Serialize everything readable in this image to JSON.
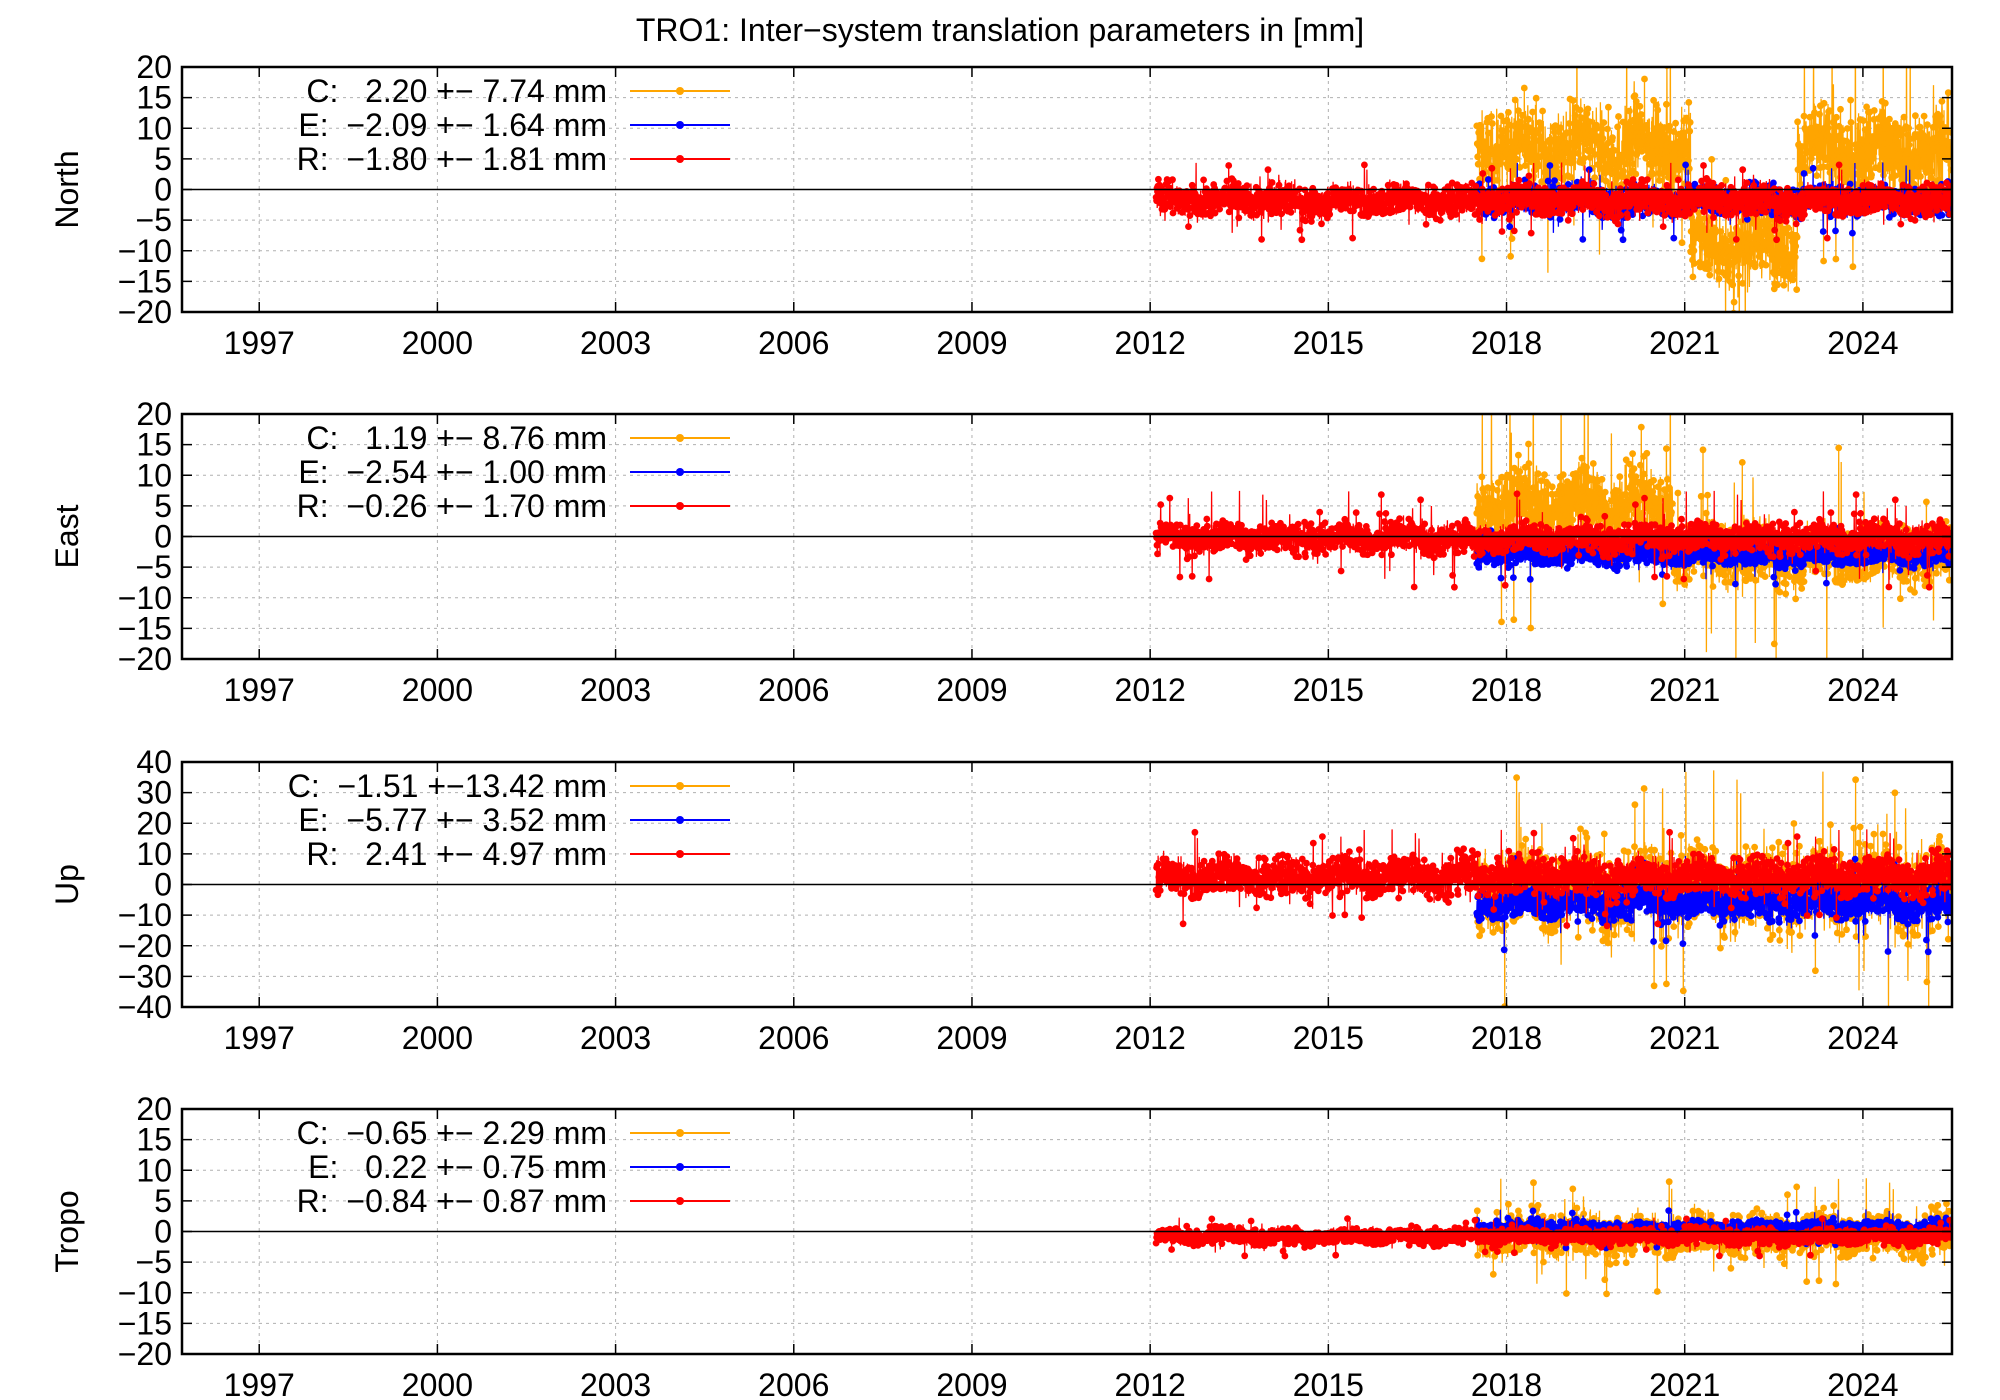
{
  "figure": {
    "title": "TRO1: Inter−system translation parameters in [mm]"
  },
  "chart_data": [
    {
      "type": "scatter",
      "ylabel": "North",
      "xlim": [
        1995.7,
        2025.5
      ],
      "ylim": [
        -20,
        20
      ],
      "x_ticks": [
        1997,
        2000,
        2003,
        2006,
        2009,
        2012,
        2015,
        2018,
        2021,
        2024
      ],
      "y_ticks": [
        -20,
        -15,
        -10,
        -5,
        0,
        5,
        10,
        15,
        20
      ],
      "grid": true,
      "legend_position": "top-left",
      "zero_line": true,
      "series": [
        {
          "name": "C",
          "legend": "C:   2.20 +− 7.74 mm",
          "color": "#FFA500",
          "segments": [
            {
              "x_start": 2017.5,
              "x_end": 2021.1,
              "mean": 7,
              "spread": 6,
              "spike": 14
            },
            {
              "x_start": 2021.1,
              "x_end": 2022.9,
              "mean": -9,
              "spread": 6,
              "spike": 12
            },
            {
              "x_start": 2022.9,
              "x_end": 2025.5,
              "mean": 6,
              "spread": 7,
              "spike": 14
            }
          ]
        },
        {
          "name": "E",
          "legend": "E:  −2.09 +− 1.64 mm",
          "color": "#0000FF",
          "segments": [
            {
              "x_start": 2017.5,
              "x_end": 2025.5,
              "mean": -1.8,
              "spread": 2.2,
              "spike": 4
            }
          ]
        },
        {
          "name": "R",
          "legend": "R:  −1.80 +− 1.81 mm",
          "color": "#FF0000",
          "segments": [
            {
              "x_start": 2012.1,
              "x_end": 2025.5,
              "mean": -1.8,
              "spread": 2.4,
              "spike": 4
            }
          ]
        }
      ]
    },
    {
      "type": "scatter",
      "ylabel": "East",
      "xlim": [
        1995.7,
        2025.5
      ],
      "ylim": [
        -20,
        20
      ],
      "x_ticks": [
        1997,
        2000,
        2003,
        2006,
        2009,
        2012,
        2015,
        2018,
        2021,
        2024
      ],
      "y_ticks": [
        -20,
        -15,
        -10,
        -5,
        0,
        5,
        10,
        15,
        20
      ],
      "grid": true,
      "legend_position": "top-left",
      "zero_line": true,
      "series": [
        {
          "name": "C",
          "legend": "C:   1.19 +− 8.76 mm",
          "color": "#FFA500",
          "segments": [
            {
              "x_start": 2017.5,
              "x_end": 2020.8,
              "mean": 5,
              "spread": 6,
              "spike": 15
            },
            {
              "x_start": 2020.8,
              "x_end": 2025.5,
              "mean": -3,
              "spread": 4.5,
              "spike": 12
            }
          ]
        },
        {
          "name": "E",
          "legend": "E:  −2.54 +− 1.00 mm",
          "color": "#0000FF",
          "segments": [
            {
              "x_start": 2017.5,
              "x_end": 2025.5,
              "mean": -3,
              "spread": 1.6,
              "spike": 3
            }
          ]
        },
        {
          "name": "R",
          "legend": "R:  −0.26 +− 1.70 mm",
          "color": "#FF0000",
          "segments": [
            {
              "x_start": 2012.1,
              "x_end": 2025.5,
              "mean": -0.3,
              "spread": 2.3,
              "spike": 5
            }
          ]
        }
      ]
    },
    {
      "type": "scatter",
      "ylabel": "Up",
      "xlim": [
        1995.7,
        2025.5
      ],
      "ylim": [
        -40,
        40
      ],
      "x_ticks": [
        1997,
        2000,
        2003,
        2006,
        2009,
        2012,
        2015,
        2018,
        2021,
        2024
      ],
      "y_ticks": [
        -40,
        -30,
        -20,
        -10,
        0,
        10,
        20,
        30,
        40
      ],
      "grid": true,
      "legend_position": "top-left",
      "zero_line": true,
      "series": [
        {
          "name": "C",
          "legend": "C:  −1.51 +−13.42 mm",
          "color": "#FFA500",
          "segments": [
            {
              "x_start": 2017.5,
              "x_end": 2025.5,
              "mean": -1.5,
              "spread": 13,
              "spike": 25
            }
          ]
        },
        {
          "name": "E",
          "legend": "E:  −5.77 +− 3.52 mm",
          "color": "#0000FF",
          "segments": [
            {
              "x_start": 2017.5,
              "x_end": 2025.5,
              "mean": -6,
              "spread": 5,
              "spike": 10
            }
          ]
        },
        {
          "name": "R",
          "legend": "R:   2.41 +− 4.97 mm",
          "color": "#FF0000",
          "segments": [
            {
              "x_start": 2012.1,
              "x_end": 2025.5,
              "mean": 2.5,
              "spread": 6,
              "spike": 10
            }
          ]
        }
      ]
    },
    {
      "type": "scatter",
      "ylabel": "Tropo",
      "xlim": [
        1995.7,
        2025.5
      ],
      "ylim": [
        -20,
        20
      ],
      "x_ticks": [
        1997,
        2000,
        2003,
        2006,
        2009,
        2012,
        2015,
        2018,
        2021,
        2024
      ],
      "y_ticks": [
        -20,
        -15,
        -10,
        -5,
        0,
        5,
        10,
        15,
        20
      ],
      "grid": true,
      "legend_position": "top-left",
      "zero_line": true,
      "series": [
        {
          "name": "C",
          "legend": "C:  −0.65 +− 2.29 mm",
          "color": "#FFA500",
          "segments": [
            {
              "x_start": 2017.5,
              "x_end": 2025.5,
              "mean": -0.6,
              "spread": 3.2,
              "spike": 6
            }
          ]
        },
        {
          "name": "E",
          "legend": "E:   0.22 +− 0.75 mm",
          "color": "#0000FF",
          "segments": [
            {
              "x_start": 2017.5,
              "x_end": 2025.5,
              "mean": 0.5,
              "spread": 1.1,
              "spike": 2
            }
          ]
        },
        {
          "name": "R",
          "legend": "R:  −0.84 +− 0.87 mm",
          "color": "#FF0000",
          "segments": [
            {
              "x_start": 2012.1,
              "x_end": 2025.5,
              "mean": -0.8,
              "spread": 1.2,
              "spike": 2
            }
          ]
        }
      ]
    }
  ]
}
